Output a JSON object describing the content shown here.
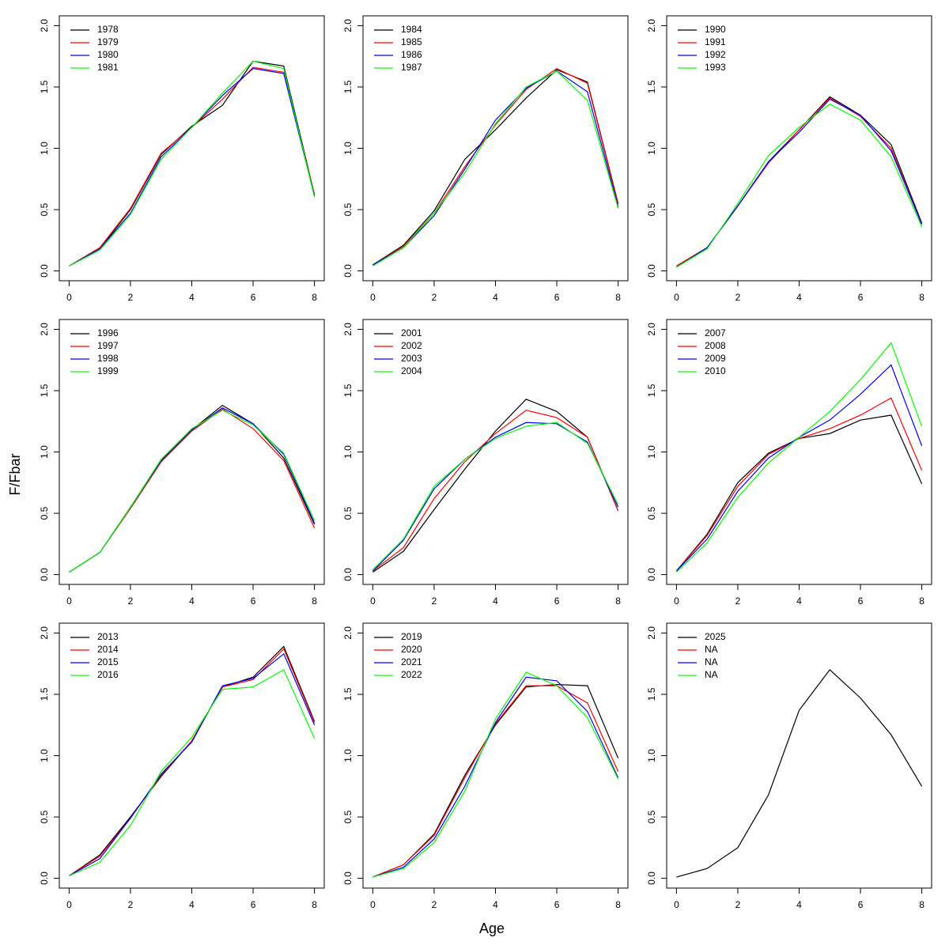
{
  "xlabel": "Age",
  "ylabel": "F/Fbar",
  "chart_data": [
    {
      "type": "line",
      "x": [
        0,
        1,
        2,
        3,
        4,
        5,
        6,
        7,
        8
      ],
      "xlim": [
        -0.32,
        8.32
      ],
      "ylim": [
        -0.08,
        2.08
      ],
      "xticks": [
        0,
        2,
        4,
        6,
        8
      ],
      "yticks": [
        {
          "value": 0,
          "label": "0.0"
        },
        0.5,
        {
          "value": 1,
          "label": "1.0"
        },
        1.5,
        {
          "value": 2,
          "label": "2.0"
        }
      ],
      "legend": "top-left",
      "series": [
        {
          "name": "1978",
          "color": "#000000",
          "values": [
            0.04,
            0.18,
            0.5,
            0.95,
            1.18,
            1.35,
            1.71,
            1.67,
            0.62
          ]
        },
        {
          "name": "1979",
          "color": "#ff0000",
          "values": [
            0.04,
            0.19,
            0.51,
            0.96,
            1.17,
            1.4,
            1.66,
            1.62,
            0.62
          ]
        },
        {
          "name": "1980",
          "color": "#0000ff",
          "values": [
            0.04,
            0.18,
            0.47,
            0.93,
            1.17,
            1.43,
            1.65,
            1.61,
            0.61
          ]
        },
        {
          "name": "1981",
          "color": "#00ff00",
          "values": [
            0.04,
            0.17,
            0.46,
            0.91,
            1.17,
            1.45,
            1.71,
            1.65,
            0.6
          ]
        }
      ]
    },
    {
      "type": "line",
      "x": [
        0,
        1,
        2,
        3,
        4,
        5,
        6,
        7,
        8
      ],
      "xlim": [
        -0.32,
        8.32
      ],
      "ylim": [
        -0.08,
        2.08
      ],
      "xticks": [
        0,
        2,
        4,
        6,
        8
      ],
      "yticks": [
        {
          "value": 0,
          "label": "0.0"
        },
        0.5,
        {
          "value": 1,
          "label": "1.0"
        },
        1.5,
        {
          "value": 2,
          "label": "2.0"
        }
      ],
      "legend": "top-left",
      "series": [
        {
          "name": "1984",
          "color": "#000000",
          "values": [
            0.05,
            0.21,
            0.49,
            0.91,
            1.15,
            1.41,
            1.64,
            1.54,
            0.55
          ]
        },
        {
          "name": "1985",
          "color": "#ff0000",
          "values": [
            0.05,
            0.2,
            0.47,
            0.85,
            1.19,
            1.48,
            1.65,
            1.53,
            0.54
          ]
        },
        {
          "name": "1986",
          "color": "#0000ff",
          "values": [
            0.05,
            0.19,
            0.45,
            0.83,
            1.23,
            1.49,
            1.63,
            1.46,
            0.52
          ]
        },
        {
          "name": "1987",
          "color": "#00ff00",
          "values": [
            0.04,
            0.19,
            0.47,
            0.8,
            1.2,
            1.5,
            1.63,
            1.39,
            0.51
          ]
        }
      ]
    },
    {
      "type": "line",
      "x": [
        0,
        1,
        2,
        3,
        4,
        5,
        6,
        7,
        8
      ],
      "xlim": [
        -0.32,
        8.32
      ],
      "ylim": [
        -0.08,
        2.08
      ],
      "xticks": [
        0,
        2,
        4,
        6,
        8
      ],
      "yticks": [
        {
          "value": 0,
          "label": "0.0"
        },
        0.5,
        {
          "value": 1,
          "label": "1.0"
        },
        1.5,
        {
          "value": 2,
          "label": "2.0"
        }
      ],
      "legend": "top-left",
      "series": [
        {
          "name": "1990",
          "color": "#000000",
          "values": [
            0.04,
            0.19,
            0.53,
            0.89,
            1.15,
            1.42,
            1.27,
            1.03,
            0.39
          ]
        },
        {
          "name": "1991",
          "color": "#ff0000",
          "values": [
            0.04,
            0.19,
            0.53,
            0.88,
            1.15,
            1.41,
            1.26,
            1.0,
            0.38
          ]
        },
        {
          "name": "1992",
          "color": "#0000ff",
          "values": [
            0.03,
            0.19,
            0.53,
            0.89,
            1.13,
            1.4,
            1.27,
            0.98,
            0.38
          ]
        },
        {
          "name": "1993",
          "color": "#00ff00",
          "values": [
            0.03,
            0.18,
            0.55,
            0.94,
            1.17,
            1.36,
            1.23,
            0.93,
            0.36
          ]
        }
      ]
    },
    {
      "type": "line",
      "x": [
        0,
        1,
        2,
        3,
        4,
        5,
        6,
        7,
        8
      ],
      "xlim": [
        -0.32,
        8.32
      ],
      "ylim": [
        -0.08,
        2.08
      ],
      "xticks": [
        0,
        2,
        4,
        6,
        8
      ],
      "yticks": [
        {
          "value": 0,
          "label": "0.0"
        },
        0.5,
        {
          "value": 1,
          "label": "1.0"
        },
        1.5,
        {
          "value": 2,
          "label": "2.0"
        }
      ],
      "legend": "top-left",
      "series": [
        {
          "name": "1996",
          "color": "#000000",
          "values": [
            0.02,
            0.18,
            0.54,
            0.92,
            1.18,
            1.38,
            1.23,
            0.95,
            0.41
          ]
        },
        {
          "name": "1997",
          "color": "#ff0000",
          "values": [
            0.02,
            0.18,
            0.54,
            0.92,
            1.17,
            1.35,
            1.19,
            0.93,
            0.38
          ]
        },
        {
          "name": "1998",
          "color": "#0000ff",
          "values": [
            0.02,
            0.18,
            0.55,
            0.93,
            1.18,
            1.36,
            1.23,
            0.98,
            0.42
          ]
        },
        {
          "name": "1999",
          "color": "#00ff00",
          "values": [
            0.02,
            0.18,
            0.55,
            0.94,
            1.19,
            1.34,
            1.22,
            0.99,
            0.44
          ]
        }
      ]
    },
    {
      "type": "line",
      "x": [
        0,
        1,
        2,
        3,
        4,
        5,
        6,
        7,
        8
      ],
      "xlim": [
        -0.32,
        8.32
      ],
      "ylim": [
        -0.08,
        2.08
      ],
      "xticks": [
        0,
        2,
        4,
        6,
        8
      ],
      "yticks": [
        {
          "value": 0,
          "label": "0.0"
        },
        0.5,
        {
          "value": 1,
          "label": "1.0"
        },
        1.5,
        {
          "value": 2,
          "label": "2.0"
        }
      ],
      "legend": "top-left",
      "series": [
        {
          "name": "2001",
          "color": "#000000",
          "values": [
            0.02,
            0.19,
            0.53,
            0.86,
            1.17,
            1.43,
            1.33,
            1.12,
            0.52
          ]
        },
        {
          "name": "2002",
          "color": "#ff0000",
          "values": [
            0.03,
            0.22,
            0.62,
            0.92,
            1.15,
            1.34,
            1.28,
            1.12,
            0.52
          ]
        },
        {
          "name": "2003",
          "color": "#0000ff",
          "values": [
            0.03,
            0.28,
            0.7,
            0.94,
            1.12,
            1.24,
            1.23,
            1.08,
            0.55
          ]
        },
        {
          "name": "2004",
          "color": "#00ff00",
          "values": [
            0.04,
            0.29,
            0.72,
            0.94,
            1.11,
            1.21,
            1.24,
            1.07,
            0.57
          ]
        }
      ]
    },
    {
      "type": "line",
      "x": [
        0,
        1,
        2,
        3,
        4,
        5,
        6,
        7,
        8
      ],
      "xlim": [
        -0.32,
        8.32
      ],
      "ylim": [
        -0.08,
        2.08
      ],
      "xticks": [
        0,
        2,
        4,
        6,
        8
      ],
      "yticks": [
        {
          "value": 0,
          "label": "0.0"
        },
        0.5,
        {
          "value": 1,
          "label": "1.0"
        },
        1.5,
        {
          "value": 2,
          "label": "2.0"
        }
      ],
      "legend": "top-left",
      "series": [
        {
          "name": "2007",
          "color": "#000000",
          "values": [
            0.03,
            0.33,
            0.75,
            0.99,
            1.11,
            1.15,
            1.26,
            1.3,
            0.74
          ]
        },
        {
          "name": "2008",
          "color": "#ff0000",
          "values": [
            0.03,
            0.32,
            0.72,
            0.98,
            1.11,
            1.19,
            1.3,
            1.44,
            0.85
          ]
        },
        {
          "name": "2009",
          "color": "#0000ff",
          "values": [
            0.03,
            0.29,
            0.68,
            0.95,
            1.12,
            1.26,
            1.47,
            1.71,
            1.05
          ]
        },
        {
          "name": "2010",
          "color": "#00ff00",
          "values": [
            0.02,
            0.26,
            0.63,
            0.91,
            1.12,
            1.33,
            1.59,
            1.89,
            1.21
          ]
        }
      ]
    },
    {
      "type": "line",
      "x": [
        0,
        1,
        2,
        3,
        4,
        5,
        6,
        7,
        8
      ],
      "xlim": [
        -0.32,
        8.32
      ],
      "ylim": [
        -0.08,
        2.08
      ],
      "xticks": [
        0,
        2,
        4,
        6,
        8
      ],
      "yticks": [
        {
          "value": 0,
          "label": "0.0"
        },
        0.5,
        {
          "value": 1,
          "label": "1.0"
        },
        1.5,
        {
          "value": 2,
          "label": "2.0"
        }
      ],
      "legend": "top-left",
      "series": [
        {
          "name": "2013",
          "color": "#000000",
          "values": [
            0.02,
            0.19,
            0.5,
            0.83,
            1.12,
            1.56,
            1.64,
            1.89,
            1.28
          ]
        },
        {
          "name": "2014",
          "color": "#ff0000",
          "values": [
            0.02,
            0.18,
            0.49,
            0.84,
            1.12,
            1.56,
            1.62,
            1.87,
            1.27
          ]
        },
        {
          "name": "2015",
          "color": "#0000ff",
          "values": [
            0.02,
            0.16,
            0.49,
            0.85,
            1.11,
            1.57,
            1.63,
            1.83,
            1.25
          ]
        },
        {
          "name": "2016",
          "color": "#00ff00",
          "values": [
            0.02,
            0.13,
            0.43,
            0.87,
            1.15,
            1.54,
            1.56,
            1.7,
            1.14
          ]
        }
      ]
    },
    {
      "type": "line",
      "x": [
        0,
        1,
        2,
        3,
        4,
        5,
        6,
        7,
        8
      ],
      "xlim": [
        -0.32,
        8.32
      ],
      "ylim": [
        -0.08,
        2.08
      ],
      "xticks": [
        0,
        2,
        4,
        6,
        8
      ],
      "yticks": [
        {
          "value": 0,
          "label": "0.0"
        },
        0.5,
        {
          "value": 1,
          "label": "1.0"
        },
        1.5,
        {
          "value": 2,
          "label": "2.0"
        }
      ],
      "legend": "top-left",
      "series": [
        {
          "name": "2019",
          "color": "#000000",
          "values": [
            0.01,
            0.11,
            0.36,
            0.84,
            1.25,
            1.56,
            1.58,
            1.57,
            0.98
          ]
        },
        {
          "name": "2020",
          "color": "#ff0000",
          "values": [
            0.01,
            0.11,
            0.35,
            0.82,
            1.26,
            1.57,
            1.57,
            1.43,
            0.87
          ]
        },
        {
          "name": "2021",
          "color": "#0000ff",
          "values": [
            0.01,
            0.09,
            0.32,
            0.75,
            1.27,
            1.64,
            1.61,
            1.36,
            0.82
          ]
        },
        {
          "name": "2022",
          "color": "#00ff00",
          "values": [
            0.01,
            0.08,
            0.29,
            0.71,
            1.3,
            1.68,
            1.57,
            1.31,
            0.81
          ]
        }
      ]
    },
    {
      "type": "line",
      "x": [
        0,
        1,
        2,
        3,
        4,
        5,
        6,
        7,
        8
      ],
      "xlim": [
        -0.32,
        8.32
      ],
      "ylim": [
        -0.08,
        2.08
      ],
      "xticks": [
        0,
        2,
        4,
        6,
        8
      ],
      "yticks": [
        {
          "value": 0,
          "label": "0.0"
        },
        0.5,
        {
          "value": 1,
          "label": "1.0"
        },
        1.5,
        {
          "value": 2,
          "label": "2.0"
        }
      ],
      "legend": "top-left",
      "series": [
        {
          "name": "2025",
          "color": "#000000",
          "values": [
            0.01,
            0.08,
            0.25,
            0.68,
            1.37,
            1.7,
            1.47,
            1.17,
            0.75
          ]
        },
        {
          "name": "NA",
          "color": "#ff0000",
          "values": [
            null,
            null,
            null,
            null,
            null,
            null,
            null,
            null,
            null
          ]
        },
        {
          "name": "NA",
          "color": "#0000ff",
          "values": [
            null,
            null,
            null,
            null,
            null,
            null,
            null,
            null,
            null
          ]
        },
        {
          "name": "NA",
          "color": "#00ff00",
          "values": [
            null,
            null,
            null,
            null,
            null,
            null,
            null,
            null,
            null
          ]
        }
      ]
    }
  ]
}
